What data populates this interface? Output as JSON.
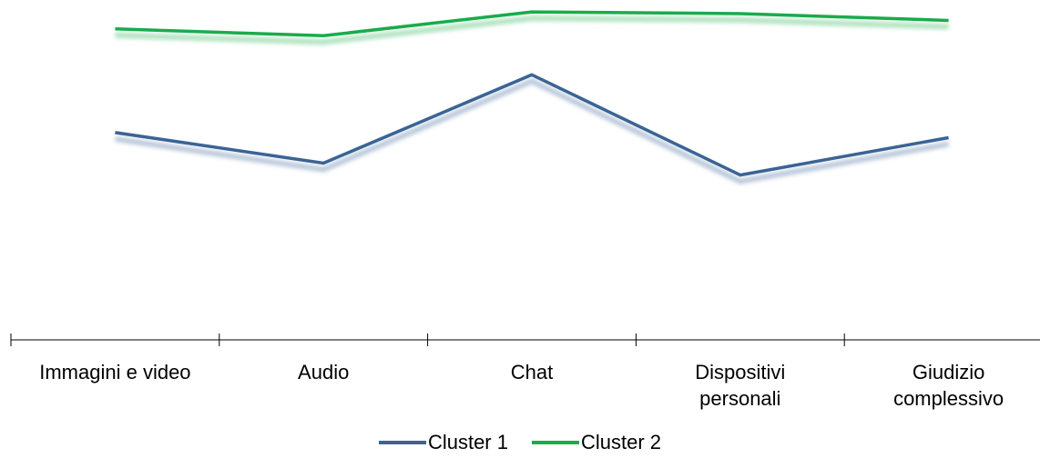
{
  "chart_data": {
    "type": "line",
    "categories": [
      "Immagini e video",
      "Audio",
      "Chat",
      "Dispositivi personali",
      "Giudizio complessivo"
    ],
    "category_lines": [
      [
        "Immagini e video"
      ],
      [
        "Audio"
      ],
      [
        "Chat"
      ],
      [
        "Dispositivi",
        "personali"
      ],
      [
        "Giudizio",
        "complessivo"
      ]
    ],
    "series": [
      {
        "name": "Cluster 1",
        "color": "#3A6494",
        "values": [
          0.61,
          0.52,
          0.78,
          0.485,
          0.595
        ]
      },
      {
        "name": "Cluster 2",
        "color": "#1AAB4B",
        "values": [
          0.915,
          0.895,
          0.965,
          0.96,
          0.94
        ]
      }
    ],
    "ylim": [
      0,
      1
    ],
    "y_axis_visible": false,
    "grid": false,
    "legend_position": "bottom",
    "title": "",
    "xlabel": "",
    "ylabel": ""
  }
}
